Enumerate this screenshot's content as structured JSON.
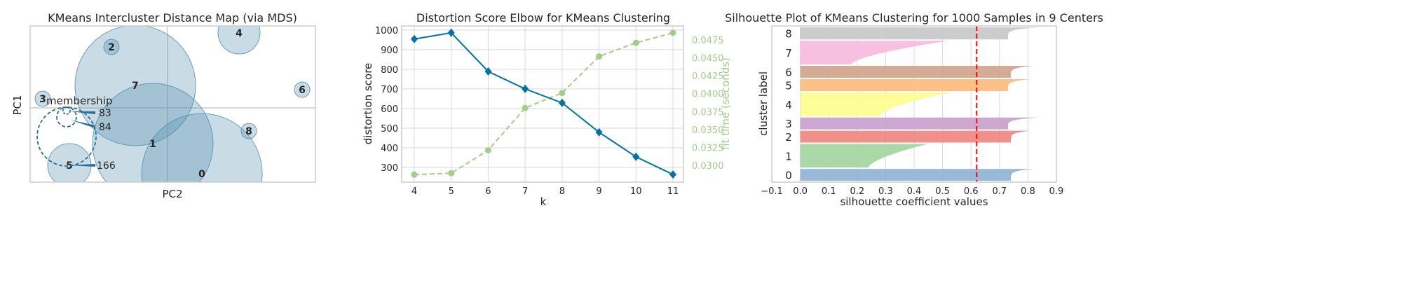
{
  "chart_data": [
    {
      "type": "scatter",
      "title": "KMeans Intercluster Distance Map (via MDS)",
      "xlabel": "PC2",
      "ylabel": "PC1",
      "clusters": [
        "0",
        "1",
        "2",
        "3",
        "4",
        "5",
        "6",
        "7",
        "8"
      ],
      "legend": {
        "title": "membership",
        "values": [
          "83",
          "84",
          "166"
        ],
        "placement": "left"
      },
      "colors": {
        "fill": "#4d8bab",
        "edge": "#4d8bab",
        "legend": "#2a6f97"
      }
    },
    {
      "type": "line",
      "title": "Distortion Score Elbow for KMeans Clustering",
      "xlabel": "k",
      "ylabel": "distortion score",
      "y2label": "fit time (seconds)",
      "x": [
        4,
        5,
        6,
        7,
        8,
        9,
        10,
        11
      ],
      "series": [
        {
          "axis": "left",
          "values": [
            954,
            986,
            789,
            700,
            629,
            479,
            354,
            264
          ],
          "color": "#0072a8",
          "marker": "diamond"
        },
        {
          "axis": "right",
          "values": [
            0.0287,
            0.0289,
            0.0321,
            0.038,
            0.0401,
            0.0452,
            0.0471,
            0.0485
          ],
          "color": "#a5cc8a",
          "marker": "circle",
          "style": "dashed"
        }
      ],
      "xticks": [
        "4",
        "5",
        "6",
        "7",
        "8",
        "9",
        "10",
        "11"
      ],
      "yticks": [
        "300",
        "400",
        "500",
        "600",
        "700",
        "800",
        "900",
        "1000"
      ],
      "y2ticks": [
        "0.0300",
        "0.0325",
        "0.0350",
        "0.0375",
        "0.0400",
        "0.0425",
        "0.0450",
        "0.0475"
      ],
      "ylim": [
        225,
        1021
      ],
      "y2lim": [
        0.02765,
        0.04946
      ],
      "grid": true
    },
    {
      "type": "area",
      "title": "Silhouette Plot of KMeans Clustering for 1000 Samples in 9 Centers",
      "xlabel": "silhouette coefficient values",
      "ylabel": "cluster label",
      "xlim": [
        -0.1,
        0.9
      ],
      "xticks": [
        "−0.1",
        "0.0",
        "0.1",
        "0.2",
        "0.3",
        "0.4",
        "0.5",
        "0.6",
        "0.7",
        "0.8",
        "0.9"
      ],
      "average_silhouette": 0.62,
      "average_line_color": "#ff0000",
      "clusters": [
        {
          "label": "0",
          "size": 83,
          "min": 0.74,
          "max": 0.82,
          "color": "#92b5d6"
        },
        {
          "label": "1",
          "size": 166,
          "min": 0.24,
          "max": 0.45,
          "color": "#a5d6a1"
        },
        {
          "label": "2",
          "size": 83,
          "min": 0.74,
          "max": 0.81,
          "color": "#ef8a87"
        },
        {
          "label": "3",
          "size": 83,
          "min": 0.73,
          "max": 0.84,
          "color": "#c9a3cd"
        },
        {
          "label": "4",
          "size": 166,
          "min": 0.28,
          "max": 0.53,
          "color": "#fdfd94"
        },
        {
          "label": "5",
          "size": 84,
          "min": 0.73,
          "max": 0.81,
          "color": "#fdbd7f"
        },
        {
          "label": "6",
          "size": 84,
          "min": 0.74,
          "max": 0.82,
          "color": "#d2a890"
        },
        {
          "label": "7",
          "size": 166,
          "min": 0.18,
          "max": 0.52,
          "color": "#f7bddf"
        },
        {
          "label": "8",
          "size": 85,
          "min": 0.73,
          "max": 0.84,
          "color": "#c9c9c9"
        }
      ]
    }
  ]
}
